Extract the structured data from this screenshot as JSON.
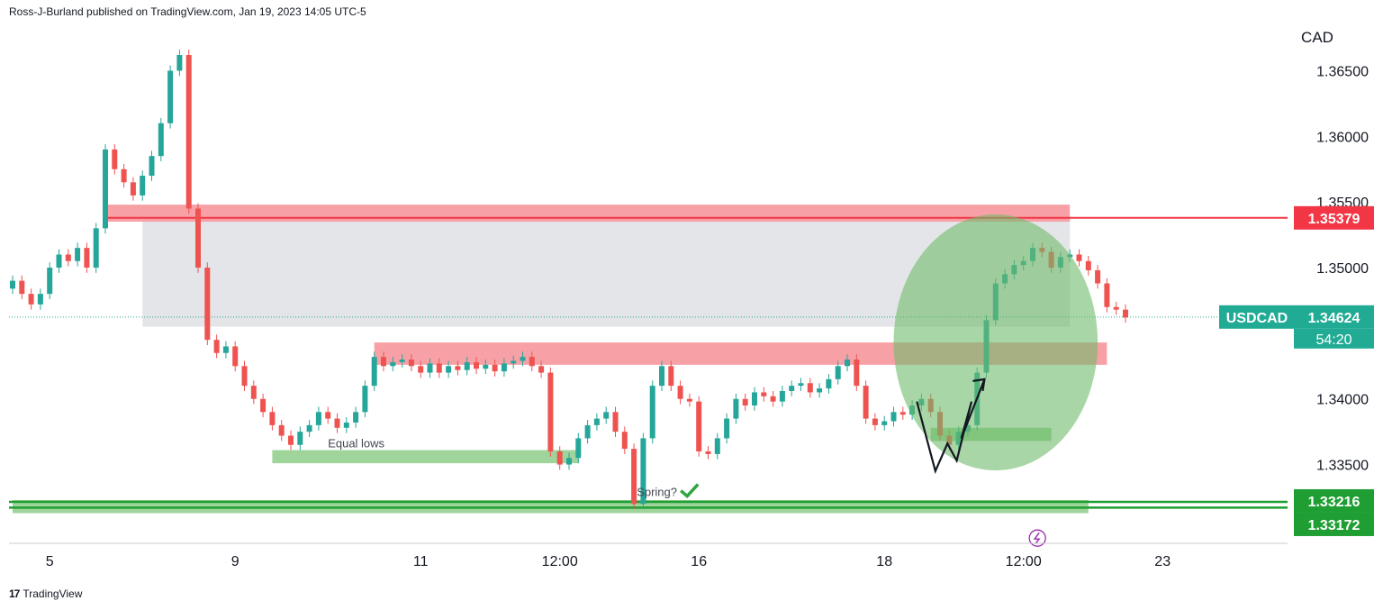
{
  "header": {
    "published": "Ross-J-Burland published on TradingView.com, Jan 19, 2023 14:05 UTC-5"
  },
  "footer": {
    "brand": "TradingView",
    "logo_mark": "17"
  },
  "colors": {
    "up": "#26a69a",
    "down": "#ef5350",
    "resistance": "#f7a1a6",
    "resistance_line": "#f23645",
    "support": "#9fd49a",
    "support_line": "#1f9e33",
    "range_box": "#e1e2e6",
    "circle": "#6fba6a",
    "last_price": "#22ab94"
  },
  "chart_data": {
    "type": "candlestick",
    "symbol": "USDCAD",
    "currency_label": "CAD",
    "ylim": [
      1.329,
      1.3697
    ],
    "y_ticks": [
      1.365,
      1.36,
      1.355,
      1.35,
      1.345,
      1.34,
      1.335
    ],
    "y_tick_labels": [
      "1.36500",
      "1.36000",
      "1.35500",
      "1.35000",
      "1.34500",
      "1.34000",
      "1.33500"
    ],
    "x_ticks": [
      {
        "label": "5",
        "bar": 4
      },
      {
        "label": "9",
        "bar": 24
      },
      {
        "label": "11",
        "bar": 44
      },
      {
        "label": "12:00",
        "bar": 59
      },
      {
        "label": "16",
        "bar": 74
      },
      {
        "label": "18",
        "bar": 94
      },
      {
        "label": "12:00",
        "bar": 109
      },
      {
        "label": "23",
        "bar": 124
      }
    ],
    "closes": [
      1.349,
      1.348,
      1.3472,
      1.348,
      1.35,
      1.351,
      1.3505,
      1.3515,
      1.35,
      1.353,
      1.359,
      1.3575,
      1.3565,
      1.3555,
      1.357,
      1.3585,
      1.361,
      1.365,
      1.3662,
      1.3545,
      1.35,
      1.3445,
      1.3435,
      1.344,
      1.3425,
      1.341,
      1.34,
      1.339,
      1.338,
      1.3372,
      1.3365,
      1.3375,
      1.338,
      1.339,
      1.3385,
      1.3378,
      1.3382,
      1.339,
      1.341,
      1.3432,
      1.3425,
      1.3428,
      1.343,
      1.3425,
      1.342,
      1.3427,
      1.342,
      1.3425,
      1.3422,
      1.3428,
      1.3423,
      1.3426,
      1.3421,
      1.3427,
      1.3429,
      1.3432,
      1.3425,
      1.342,
      1.336,
      1.335,
      1.3355,
      1.337,
      1.338,
      1.3385,
      1.339,
      1.3375,
      1.3362,
      1.332,
      1.337,
      1.341,
      1.3425,
      1.341,
      1.34,
      1.3398,
      1.336,
      1.3358,
      1.337,
      1.3385,
      1.34,
      1.3395,
      1.3405,
      1.3402,
      1.3398,
      1.3406,
      1.341,
      1.3412,
      1.3405,
      1.3408,
      1.3415,
      1.3425,
      1.343,
      1.341,
      1.3385,
      1.338,
      1.3383,
      1.339,
      1.3388,
      1.3395,
      1.34,
      1.339,
      1.3372,
      1.3365,
      1.3375,
      1.338,
      1.342,
      1.346,
      1.3488,
      1.3495,
      1.3502,
      1.3505,
      1.3515,
      1.3512,
      1.35,
      1.3508,
      1.351,
      1.3505,
      1.3498,
      1.3488,
      1.347,
      1.3468,
      1.3462
    ],
    "last_price": {
      "value": 1.34624,
      "label": "1.34624",
      "countdown": "54:20"
    },
    "levels": [
      {
        "value": 1.35379,
        "label": "1.35379",
        "kind": "resistance"
      },
      {
        "value": 1.33216,
        "label": "1.33216",
        "kind": "support"
      },
      {
        "value": 1.33172,
        "label": "1.33172",
        "kind": "support"
      }
    ],
    "zones": {
      "range_box": {
        "x0_bar": 14,
        "x1_bar": 114,
        "y0": 1.354,
        "y1": 1.3455
      },
      "upper_red": {
        "x0_bar": 10,
        "x1_bar": 114,
        "y0": 1.3548,
        "y1": 1.3535
      },
      "mid_red": {
        "x0_bar": 39,
        "x1_bar": 118,
        "y0": 1.3443,
        "y1": 1.3426
      },
      "equal_lows": {
        "x0_bar": 28,
        "x1_bar": 61,
        "y0": 1.3361,
        "y1": 1.3351
      },
      "base_green": {
        "x0_bar": 0,
        "x1_bar": 116,
        "y0": 1.3323,
        "y1": 1.3313
      },
      "right_green": {
        "x0_bar": 99,
        "x1_bar": 112,
        "y0": 1.3378,
        "y1": 1.3368
      },
      "circle": {
        "cx_bar": 106,
        "cy": 1.3443,
        "rx_bars": 11,
        "ry": 0.00975
      }
    },
    "annotations": [
      {
        "text": "Equal lows",
        "bar": 34,
        "y": 1.3363
      },
      {
        "text": "Spring?",
        "bar": 67.3,
        "y": 1.3326
      }
    ],
    "bolt_icon": {
      "bar": 110.5,
      "y": 1.3294
    }
  }
}
